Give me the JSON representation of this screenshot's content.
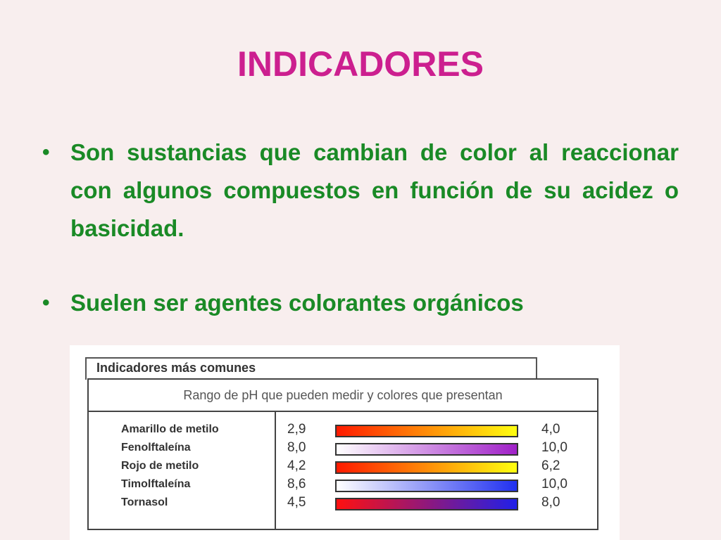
{
  "slide": {
    "title": "INDICADORES",
    "bullets": [
      "Son sustancias que cambian de color al reaccionar con algunos compuestos en función de su acidez o basicidad.",
      "Suelen ser agentes colorantes orgánicos"
    ]
  },
  "figure": {
    "title": "Indicadores más comunes",
    "subtitle": "Rango de pH que pueden medir y colores que presentan",
    "indicators": [
      {
        "name": "Amarillo de metilo",
        "low": "2,9",
        "high": "4,0",
        "colors": [
          "#ff1a00",
          "#ffff10"
        ]
      },
      {
        "name": "Fenolftaleína",
        "low": "8,0",
        "high": "10,0",
        "colors": [
          "#ffffff",
          "#a020c8"
        ]
      },
      {
        "name": "Rojo de metilo",
        "low": "4,2",
        "high": "6,2",
        "colors": [
          "#ff1a00",
          "#ffff10"
        ]
      },
      {
        "name": "Timolftaleína",
        "low": "8,6",
        "high": "10,0",
        "colors": [
          "#ffffff",
          "#2030f0"
        ]
      },
      {
        "name": "Tornasol",
        "low": "4,5",
        "high": "8,0",
        "colors": [
          "#ff1010",
          "#2020e8"
        ]
      }
    ]
  },
  "colors": {
    "title": "#cc1f8f",
    "bullet_text": "#1a8a26",
    "background": "#f8eeee"
  }
}
